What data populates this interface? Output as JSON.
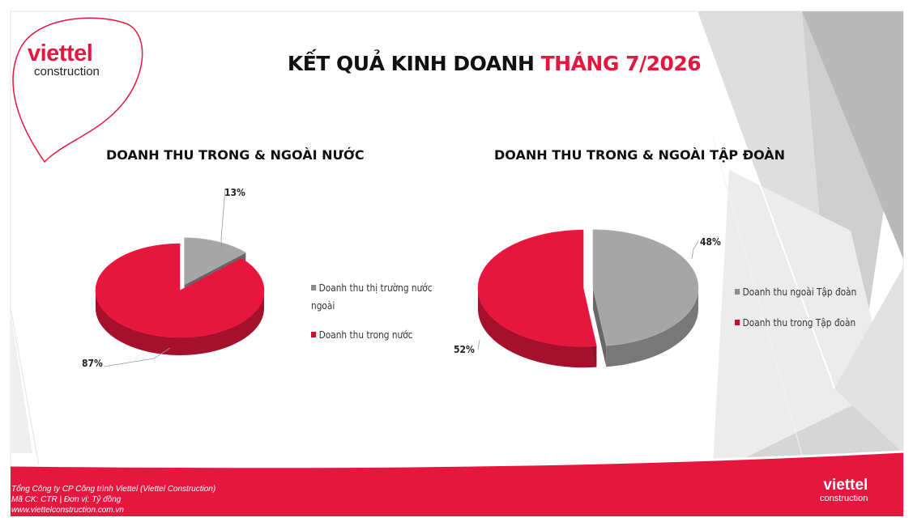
{
  "header": {
    "title_main": "KẾT QUẢ KINH DOANH ",
    "title_accent": "THÁNG 7/2026",
    "logo_word": "viettel",
    "logo_sub": "construction"
  },
  "footer": {
    "company": "Tổng Công ty CP Công trình Viettel (Viettel Construction)",
    "ticker": "Mã CK: CTR  |  Đơn vị: Tỷ đồng",
    "website": "www.viettelconstruction.com.vn",
    "logo_word": "viettel",
    "logo_sub": "construction"
  },
  "colors": {
    "brand_red": "#e5173f",
    "pie_red": "#e5173f",
    "pie_gray": "#a6a6a6"
  },
  "chart_data": [
    {
      "type": "pie",
      "title": "DOANH THU TRONG & NGOÀI NƯỚC",
      "slices": [
        {
          "label": "Doanh thu thị trường nước ngoài",
          "value": 13,
          "display": "13%",
          "color": "#a6a6a6"
        },
        {
          "label": "Doanh thu trong nước",
          "value": 87,
          "display": "87%",
          "color": "#e5173f"
        }
      ],
      "legend_placement": "right",
      "style": "3d"
    },
    {
      "type": "pie",
      "title": "DOANH THU TRONG & NGOÀI TẬP ĐOÀN",
      "slices": [
        {
          "label": "Doanh thu ngoài Tập đoàn",
          "value": 48,
          "display": "48%",
          "color": "#a6a6a6"
        },
        {
          "label": "Doanh thu trong Tập đoàn",
          "value": 52,
          "display": "52%",
          "color": "#e5173f"
        }
      ],
      "legend_placement": "right",
      "style": "3d"
    }
  ]
}
